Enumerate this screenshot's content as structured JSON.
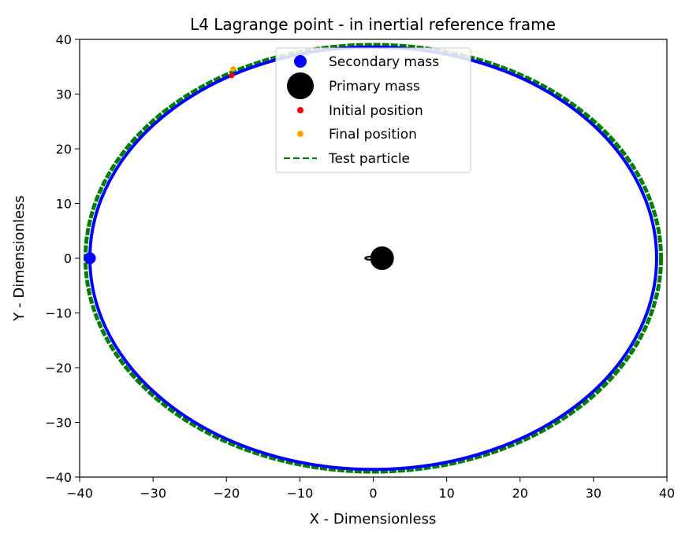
{
  "chart_data": {
    "type": "line",
    "title": "L4 Lagrange point - in inertial reference frame",
    "xlabel": "X - Dimensionless",
    "ylabel": "Y - Dimensionless",
    "xlim": [
      -40,
      40
    ],
    "ylim": [
      -40,
      40
    ],
    "xticks": [
      -40,
      -30,
      -20,
      -10,
      0,
      10,
      20,
      30,
      40
    ],
    "yticks": [
      -40,
      -30,
      -20,
      -10,
      0,
      10,
      20,
      30,
      40
    ],
    "xtick_labels": [
      "−40",
      "−30",
      "−20",
      "−10",
      "0",
      "10",
      "20",
      "30",
      "40"
    ],
    "ytick_labels": [
      "−40",
      "−30",
      "−20",
      "−10",
      "0",
      "10",
      "20",
      "30",
      "40"
    ],
    "grid": false,
    "legend_position": "upper-center",
    "series": [
      {
        "name": "Secondary mass",
        "kind": "orbit",
        "color": "#0000ff",
        "orbit": {
          "center": [
            0,
            0
          ],
          "rx": 38.6,
          "ry": 38.6
        },
        "marker": {
          "x": -38.6,
          "y": 0
        }
      },
      {
        "name": "Primary mass",
        "kind": "orbit",
        "color": "#000000",
        "orbit": {
          "center": [
            -0.3,
            0
          ],
          "rx": 0.8,
          "ry": 0.3
        },
        "marker": {
          "x": 1.2,
          "y": 0
        }
      },
      {
        "name": "Initial position",
        "kind": "point",
        "color": "#ff0000",
        "marker": {
          "x": -19.3,
          "y": 33.4
        }
      },
      {
        "name": "Final position",
        "kind": "point",
        "color": "#ffa500",
        "marker": {
          "x": -19.1,
          "y": 34.6
        }
      },
      {
        "name": "Test particle",
        "kind": "orbit",
        "color": "#008000",
        "linestyle": "dashed",
        "orbit": {
          "center": [
            0,
            0
          ],
          "rx": 39.2,
          "ry": 39.0
        }
      }
    ]
  }
}
